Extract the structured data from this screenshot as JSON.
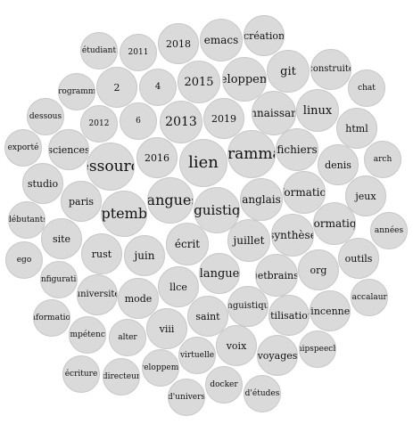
{
  "bubble_fill": "#dadada",
  "bubble_border": "#c8c8c8",
  "text_color": "#111111",
  "words": [
    "création",
    "étudiant",
    "2011",
    "2018",
    "emacs",
    "construite",
    "git",
    "chat",
    "programme",
    "2",
    "4",
    "2015",
    "développement",
    "dessous",
    "linux",
    "html",
    "2012",
    "6",
    "2013",
    "2019",
    "connaissance",
    "exporté",
    "sciences",
    "2016",
    "fichiers",
    "denis",
    "arch",
    "ressource",
    "lien",
    "programmation",
    "studio",
    "informations",
    "jeux",
    "paris",
    "septembre",
    "langues",
    "linguistique",
    "anglais",
    "débutants",
    "informatique",
    "années",
    "site",
    "rust",
    "juin",
    "écrit",
    "juillet",
    "synthèse",
    "ego",
    "outils",
    "configuration",
    "langue",
    "jetbrains",
    "org",
    "université",
    "mode",
    "llce",
    "linguistique",
    "baccalauré",
    "information",
    "vincennes",
    "utilisation",
    "compétences",
    "alter",
    "viii",
    "saint",
    "voix",
    "hipspeech",
    "virtuelle",
    "voyages",
    "écriture",
    "directeur",
    "développement",
    "docker",
    "d'études",
    "d'univers"
  ]
}
